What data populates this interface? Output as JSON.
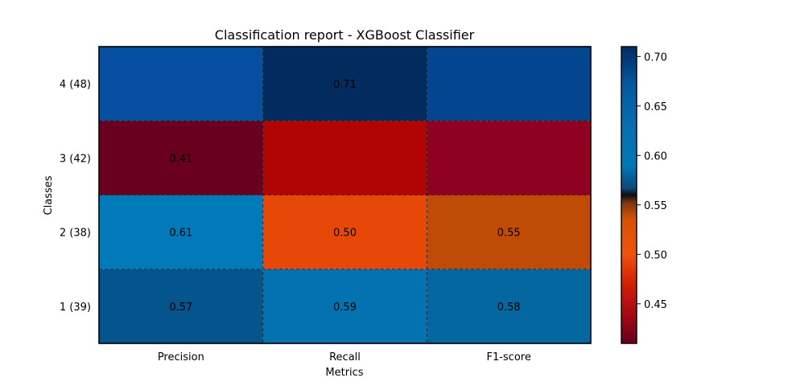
{
  "chart_data": {
    "type": "heatmap",
    "title": "Classification report - XGBoost Classifier",
    "xlabel": "Metrics",
    "ylabel": "Classes",
    "columns": [
      "Precision",
      "Recall",
      "F1-score"
    ],
    "rows": [
      "4 (48)",
      "3 (42)",
      "2 (38)",
      "1 (39)"
    ],
    "values": [
      [
        0.68,
        0.71,
        0.69
      ],
      [
        0.41,
        0.45,
        0.43
      ],
      [
        0.61,
        0.5,
        0.55
      ],
      [
        0.57,
        0.59,
        0.58
      ]
    ],
    "value_labels": [
      [
        "",
        "0.71",
        ""
      ],
      [
        "0.41",
        "",
        ""
      ],
      [
        "0.61",
        "0.50",
        "0.55"
      ],
      [
        "0.57",
        "0.59",
        "0.58"
      ]
    ],
    "colorbar": {
      "vmin": 0.41,
      "vmax": 0.71,
      "ticks": [
        "0.70",
        "0.65",
        "0.60",
        "0.55",
        "0.50",
        "0.45"
      ],
      "colormap_stops": [
        {
          "v": 0.41,
          "color": "#67001f"
        },
        {
          "v": 0.44,
          "color": "#a60a13"
        },
        {
          "v": 0.47,
          "color": "#d31f05"
        },
        {
          "v": 0.5,
          "color": "#f0520a"
        },
        {
          "v": 0.535,
          "color": "#d65208"
        },
        {
          "v": 0.552,
          "color": "#7a3a10"
        },
        {
          "v": 0.56,
          "color": "#0d0d0d"
        },
        {
          "v": 0.567,
          "color": "#0a4a7a"
        },
        {
          "v": 0.59,
          "color": "#0078b8"
        },
        {
          "v": 0.63,
          "color": "#0a6db0"
        },
        {
          "v": 0.67,
          "color": "#045aa0"
        },
        {
          "v": 0.71,
          "color": "#032b60"
        }
      ]
    },
    "cell_colors": [
      [
        "#054ea0",
        "#032c5e",
        "#044590"
      ],
      [
        "#6a001f",
        "#b10503",
        "#8f0021"
      ],
      [
        "#0279b9",
        "#e84807",
        "#c04b06"
      ],
      [
        "#05548d",
        "#0471b0",
        "#0467a0"
      ]
    ]
  }
}
